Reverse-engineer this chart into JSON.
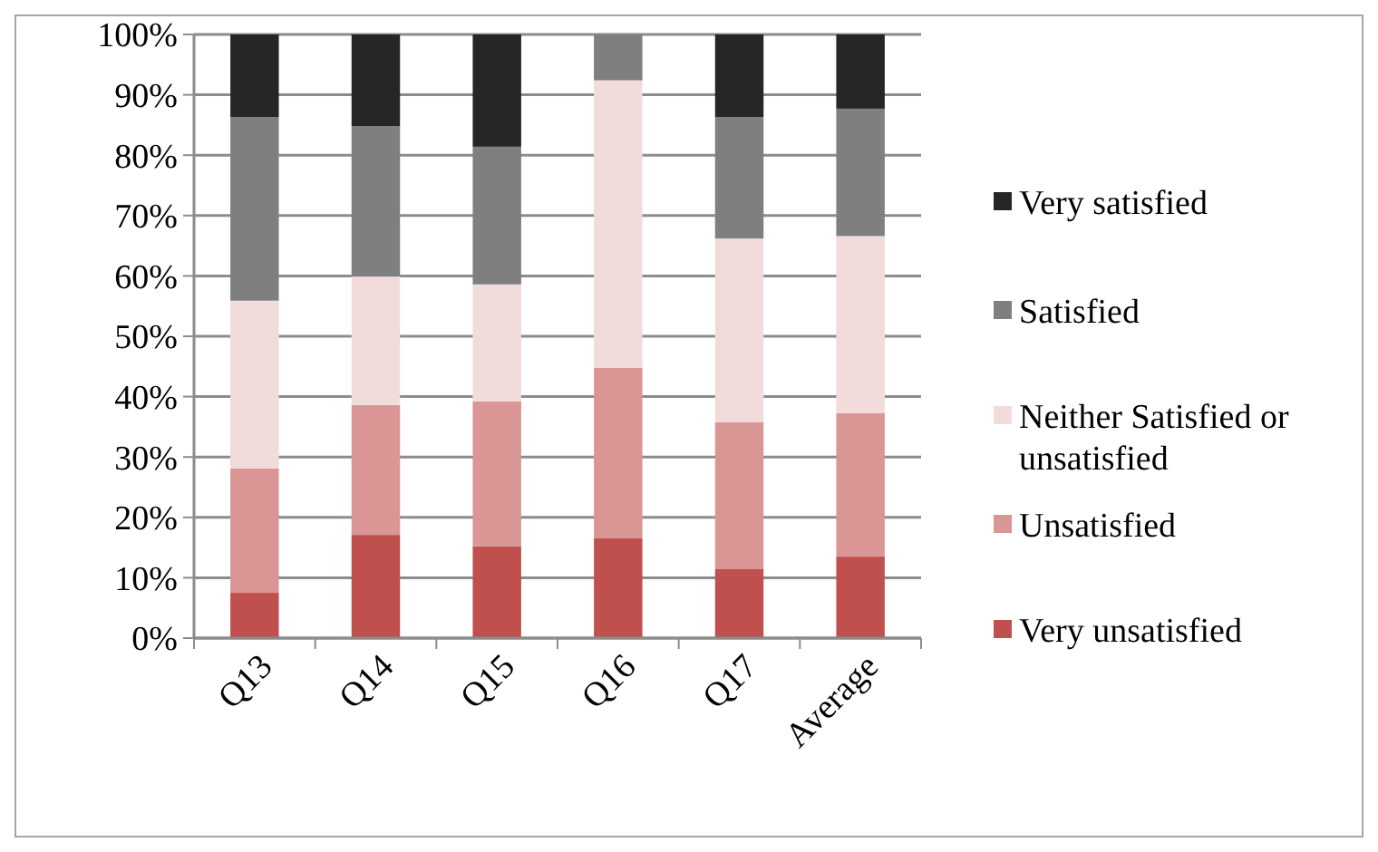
{
  "chart_data": {
    "type": "bar",
    "stacked": true,
    "categories": [
      "Q13",
      "Q14",
      "Q15",
      "Q16",
      "Q17",
      "Average"
    ],
    "series": [
      {
        "name": "Very unsatisfied",
        "color": "#c0504d",
        "values": [
          7.5,
          17.1,
          15.2,
          16.6,
          11.5,
          13.5
        ]
      },
      {
        "name": "Unsatisfied",
        "color": "#d99694",
        "values": [
          20.6,
          21.5,
          24,
          28.2,
          24.3,
          23.8
        ]
      },
      {
        "name": "Neither Satisfied or unsatisfied",
        "color": "#f2dcdb",
        "values": [
          27.8,
          21.3,
          19.4,
          47.6,
          30.4,
          29.3
        ]
      },
      {
        "name": "Satisfied",
        "color": "#7f7f7f",
        "values": [
          30.4,
          24.9,
          22.8,
          7.6,
          20.1,
          21.1
        ]
      },
      {
        "name": "Very satisfied",
        "color": "#262626",
        "values": [
          13.7,
          15.2,
          18.6,
          0,
          13.7,
          12.3
        ]
      }
    ],
    "ylim": [
      0,
      100
    ],
    "yticks": [
      {
        "value": 0,
        "label": "0%"
      },
      {
        "value": 10,
        "label": "10%"
      },
      {
        "value": 20,
        "label": "20%"
      },
      {
        "value": 30,
        "label": "30%"
      },
      {
        "value": 40,
        "label": "40%"
      },
      {
        "value": 50,
        "label": "50%"
      },
      {
        "value": 60,
        "label": "60%"
      },
      {
        "value": 70,
        "label": "70%"
      },
      {
        "value": 80,
        "label": "80%"
      },
      {
        "value": 90,
        "label": "90%"
      },
      {
        "value": 100,
        "label": "100%"
      }
    ],
    "grid": "y",
    "legend": "right"
  }
}
